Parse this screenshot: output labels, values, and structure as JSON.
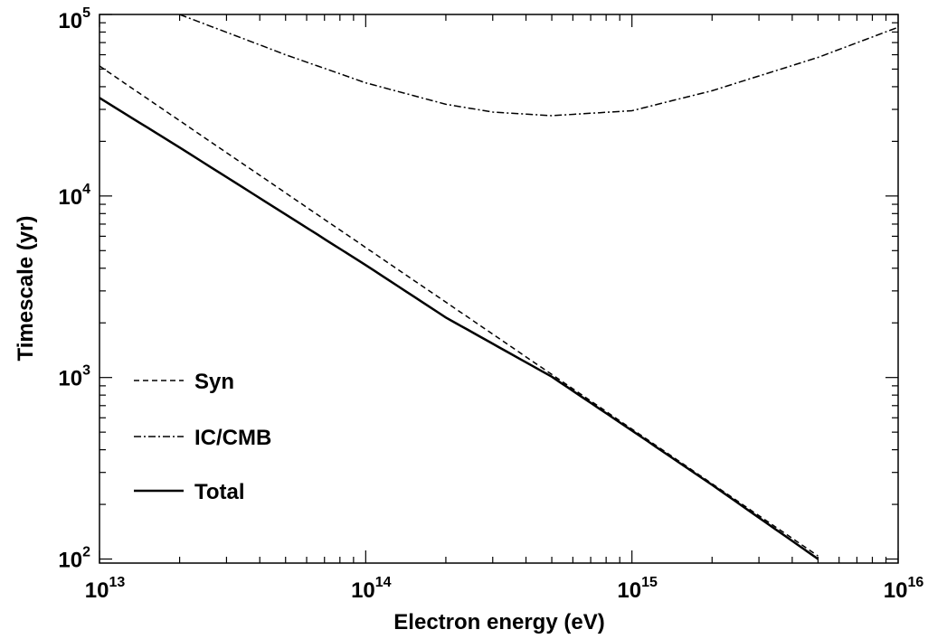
{
  "chart_data": {
    "type": "line",
    "title": "",
    "xlabel": "Electron energy (eV)",
    "ylabel": "Timescale (yr)",
    "xscale": "log",
    "yscale": "log",
    "xlim": [
      10000000000000.0,
      1e+16
    ],
    "ylim": [
      95,
      100000
    ],
    "x_ticks": [
      {
        "base": "10",
        "exp": "13",
        "value": 10000000000000.0
      },
      {
        "base": "10",
        "exp": "14",
        "value": 100000000000000.0
      },
      {
        "base": "10",
        "exp": "15",
        "value": 1000000000000000.0
      },
      {
        "base": "10",
        "exp": "16",
        "value": 1e+16
      }
    ],
    "y_ticks": [
      {
        "base": "10",
        "exp": "2",
        "value": 100
      },
      {
        "base": "10",
        "exp": "3",
        "value": 1000
      },
      {
        "base": "10",
        "exp": "4",
        "value": 10000
      },
      {
        "base": "10",
        "exp": "5",
        "value": 100000
      }
    ],
    "grid": false,
    "legend_position": "lower-left",
    "series": [
      {
        "name": "Syn",
        "style": "dashed",
        "x": [
          10000000000000.0,
          20000000000000.0,
          50000000000000.0,
          100000000000000.0,
          200000000000000.0,
          500000000000000.0,
          1000000000000000.0,
          2000000000000000.0,
          5000000000000000.0
        ],
        "y": [
          52000,
          26000,
          10400,
          5200,
          2600,
          1040,
          520,
          260,
          104
        ]
      },
      {
        "name": "IC/CMB",
        "style": "dashdot",
        "x": [
          20000000000000.0,
          50000000000000.0,
          100000000000000.0,
          200000000000000.0,
          300000000000000.0,
          500000000000000.0,
          1000000000000000.0,
          2000000000000000.0,
          5000000000000000.0,
          1e+16
        ],
        "y": [
          100000,
          60000,
          42000,
          32000,
          29000,
          27700,
          29500,
          38000,
          58000,
          85000
        ]
      },
      {
        "name": "Total",
        "style": "solid",
        "x": [
          10000000000000.0,
          20000000000000.0,
          50000000000000.0,
          100000000000000.0,
          200000000000000.0,
          500000000000000.0,
          1000000000000000.0,
          2000000000000000.0,
          5000000000000000.0
        ],
        "y": [
          34700,
          18500,
          7920,
          4160,
          2140,
          1010,
          510,
          256,
          100
        ]
      }
    ]
  }
}
